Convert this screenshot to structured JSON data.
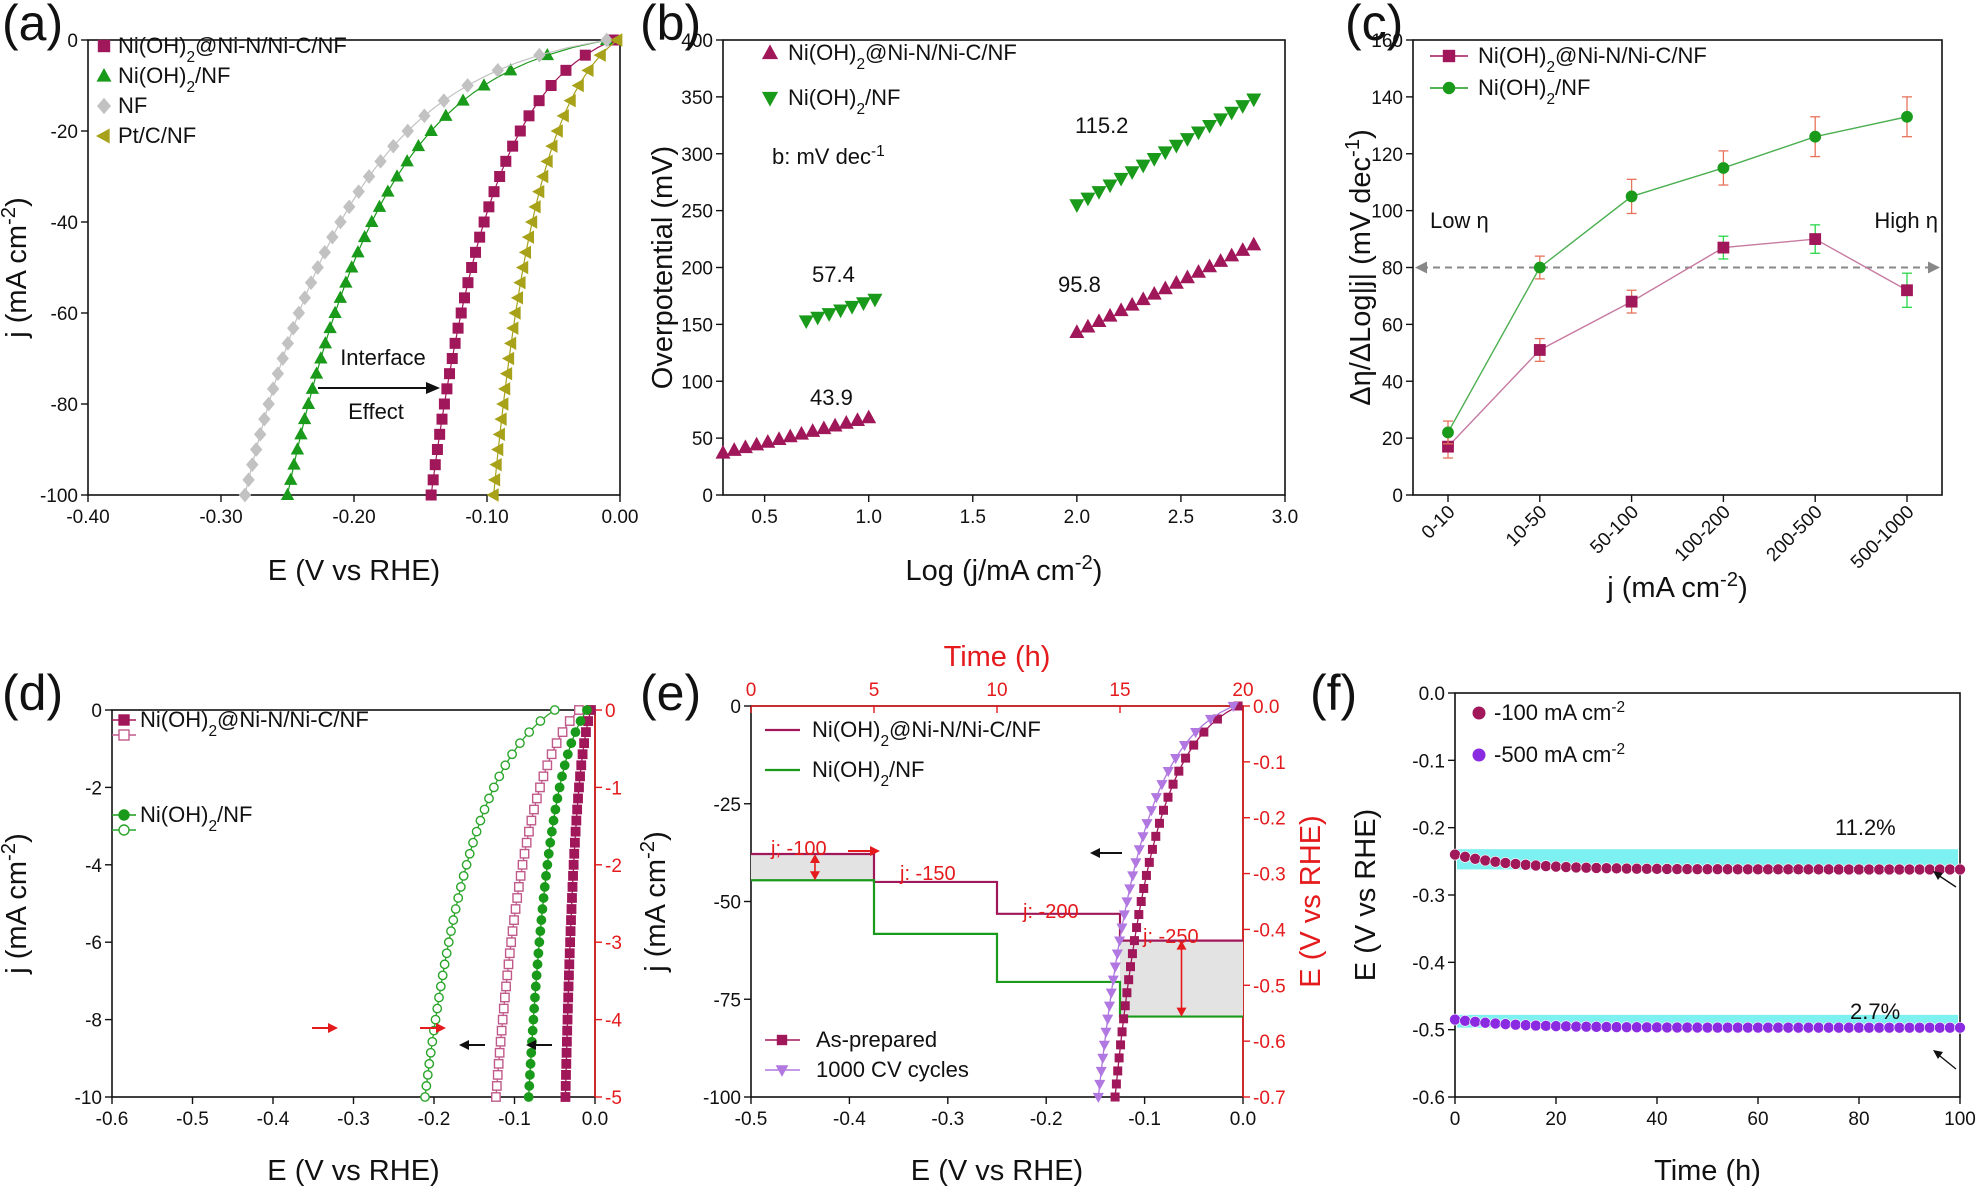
{
  "colors": {
    "maroon": "#a0175a",
    "green": "#1a9a1a",
    "gray": "#c2c2c2",
    "olive": "#a8a21a",
    "purple": "#b078e0",
    "orange": "#e6735c",
    "cyan": "#66eeee",
    "red": "#e41a1c",
    "violet": "#8a2be2"
  },
  "chart_data": [
    {
      "id": "a",
      "panel_label": "(a)",
      "type": "line",
      "xlabel": "E (V vs RHE)",
      "ylabel": "j (mA cm",
      "ylabel_sup": "-2",
      "ylabel_end": ")",
      "xlim": [
        -0.4,
        0.0
      ],
      "ylim": [
        -100,
        0
      ],
      "xticks": [
        "-0.40",
        "-0.30",
        "-0.20",
        "-0.10",
        "0.00"
      ],
      "yticks": [
        "-100",
        "-80",
        "-60",
        "-40",
        "-20",
        "0"
      ],
      "series": [
        {
          "name_main": "Ni(OH)",
          "name_sub": "2",
          "name_rest": "@Ni-N/Ni-C/NF",
          "color": "#a0175a",
          "marker": "square",
          "onset": -0.005,
          "e100": -0.142,
          "plateau": -6
        },
        {
          "name_main": "Ni(OH)",
          "name_sub": "2",
          "name_rest": "/NF",
          "color": "#1a9a1a",
          "marker": "triangle-up",
          "onset": -0.01,
          "e100": -0.25,
          "plateau": -4
        },
        {
          "name_main": "NF",
          "name_sub": "",
          "name_rest": "",
          "color": "#c2c2c2",
          "marker": "diamond",
          "onset": -0.01,
          "e100": -0.282,
          "plateau": -4
        },
        {
          "name_main": "Pt/C/NF",
          "name_sub": "",
          "name_rest": "",
          "color": "#a8a21a",
          "marker": "triangle-left",
          "onset": -0.002,
          "e100": -0.095,
          "plateau": -8
        }
      ],
      "annotation": {
        "line1": "Interface",
        "line2": "Effect"
      }
    },
    {
      "id": "b",
      "panel_label": "(b)",
      "type": "scatter",
      "xlabel": "Log (j/mA cm",
      "xlabel_sup": "-2",
      "xlabel_end": ")",
      "ylabel": "Overpotential (mV)",
      "xlim": [
        0.3,
        3.0
      ],
      "ylim": [
        0,
        400
      ],
      "xticks": [
        "0.5",
        "1.0",
        "1.5",
        "2.0",
        "2.5",
        "3.0"
      ],
      "yticks": [
        "0",
        "50",
        "100",
        "150",
        "200",
        "250",
        "300",
        "350",
        "400"
      ],
      "series": [
        {
          "name_main": "Ni(OH)",
          "name_sub": "2",
          "name_rest": "@Ni-N/Ni-C/NF",
          "color": "#a0175a",
          "marker": "triangle-up",
          "segments": [
            {
              "x": [
                0.3,
                1.0
              ],
              "y": [
                37,
                68
              ],
              "n": 14
            },
            {
              "x": [
                2.0,
                2.85
              ],
              "y": [
                143,
                220
              ],
              "n": 17
            }
          ]
        },
        {
          "name_main": "Ni(OH)",
          "name_sub": "2",
          "name_rest": "/NF",
          "color": "#1a9a1a",
          "marker": "triangle-down",
          "segments": [
            {
              "x": [
                0.7,
                1.03
              ],
              "y": [
                153,
                172
              ],
              "n": 7
            },
            {
              "x": [
                2.0,
                2.85
              ],
              "y": [
                255,
                348
              ],
              "n": 17
            }
          ]
        }
      ],
      "slope_labels": [
        "43.9",
        "57.4",
        "95.8",
        "115.2"
      ],
      "units_note": "b: mV dec",
      "units_sup": "-1"
    },
    {
      "id": "c",
      "panel_label": "(c)",
      "type": "line",
      "xlabel": "j (mA cm",
      "xlabel_sup": "-2",
      "xlabel_end": ")",
      "ylabel": "Δη/ΔLog|j| (mV dec",
      "ylabel_sup": "-1",
      "ylabel_end": ")",
      "categories": [
        "0-10",
        "10-50",
        "50-100",
        "100-200",
        "200-500",
        "500-1000"
      ],
      "ylim": [
        0,
        160
      ],
      "yticks": [
        "0",
        "20",
        "40",
        "60",
        "80",
        "100",
        "120",
        "140",
        "160"
      ],
      "series": [
        {
          "name_main": "Ni(OH)",
          "name_sub": "2",
          "name_rest": "@Ni-N/Ni-C/NF",
          "color": "#a0175a",
          "marker": "square",
          "values": [
            17,
            51,
            68,
            87,
            90,
            72
          ],
          "errors": [
            4,
            4,
            4,
            4,
            5,
            6
          ]
        },
        {
          "name_main": "Ni(OH)",
          "name_sub": "2",
          "name_rest": "/NF",
          "color": "#1a9a1a",
          "marker": "circle",
          "values": [
            22,
            80,
            105,
            115,
            126,
            133
          ],
          "errors": [
            4,
            4,
            6,
            6,
            7,
            7
          ]
        }
      ],
      "reference_line": 80,
      "low_label": "Low η",
      "high_label": "High η"
    },
    {
      "id": "d",
      "panel_label": "(d)",
      "type": "line",
      "xlabel": "E (V vs RHE)",
      "ylabel": "j (mA cm",
      "ylabel_sup": "-2",
      "ylabel_end": ")",
      "xlim": [
        -0.6,
        0.0
      ],
      "ylim": [
        -10,
        0
      ],
      "y2lim": [
        -5,
        0
      ],
      "xticks": [
        "-0.6",
        "-0.5",
        "-0.4",
        "-0.3",
        "-0.2",
        "-0.1",
        "0.0"
      ],
      "yticks": [
        "-10",
        "-8",
        "-6",
        "-4",
        "-2",
        "0"
      ],
      "y2ticks": [
        "-5",
        "-4",
        "-3",
        "-2",
        "-1",
        "0"
      ],
      "series": [
        {
          "name_main": "Ni(OH)",
          "name_sub": "2",
          "name_rest": "@Ni-N/Ni-C/NF",
          "color": "#a0175a",
          "marker": "square",
          "filled": true,
          "onset": -0.005,
          "e100": -0.065
        },
        {
          "name_main": "",
          "name_sub": "",
          "name_rest": "",
          "color": "#c05a8a",
          "marker": "square",
          "filled": false,
          "onset": -0.02,
          "e100": -0.215
        },
        {
          "name_main": "Ni(OH)",
          "name_sub": "2",
          "name_rest": "/NF",
          "color": "#1a9a1a",
          "marker": "circle",
          "filled": true,
          "onset": -0.01,
          "e100": -0.147
        },
        {
          "name_main": "",
          "name_sub": "",
          "name_rest": "",
          "color": "#2aa52a",
          "marker": "circle",
          "filled": false,
          "onset": -0.05,
          "e100": -0.355
        }
      ]
    },
    {
      "id": "e",
      "panel_label": "(e)",
      "type": "line",
      "xlabel": "E (V vs RHE)",
      "ylabel": "j (mA cm",
      "ylabel_sup": "-2",
      "ylabel_end": ")",
      "x2label": "Time (h)",
      "y2label": "E (V vs RHE)",
      "xlim": [
        -0.5,
        0.0
      ],
      "ylim": [
        -100,
        0
      ],
      "x2lim": [
        0,
        20
      ],
      "y2lim": [
        -0.7,
        0.0
      ],
      "xticks": [
        "-0.5",
        "-0.4",
        "-0.3",
        "-0.2",
        "-0.1",
        "0.0"
      ],
      "yticks": [
        "-100",
        "-75",
        "-50",
        "-25",
        "0"
      ],
      "x2ticks": [
        "0",
        "5",
        "10",
        "15",
        "20"
      ],
      "y2ticks": [
        "-0.7",
        "-0.6",
        "-0.5",
        "-0.4",
        "-0.3",
        "-0.2",
        "-0.1",
        "0.0"
      ],
      "steps": [
        {
          "name_main": "Ni(OH)",
          "name_sub": "2",
          "name_rest": "@Ni-N/Ni-C/NF",
          "color": "#a0175a",
          "values": [
            -0.265,
            -0.315,
            -0.372,
            -0.42
          ]
        },
        {
          "name_main": "Ni(OH)",
          "name_sub": "2",
          "name_rest": "/NF",
          "color": "#1a9a1a",
          "values": [
            -0.312,
            -0.408,
            -0.494,
            -0.556
          ]
        }
      ],
      "step_labels": [
        "j; -100",
        "j: -150",
        "j: -200",
        "j: -250"
      ],
      "lsv": [
        {
          "name": "As-prepared",
          "color": "#a0175a",
          "marker": "square",
          "onset": -0.005,
          "e100": -0.13
        },
        {
          "name": "1000 CV cycles",
          "color": "#b078e0",
          "marker": "triangle-down",
          "onset": -0.01,
          "e100": -0.147
        }
      ]
    },
    {
      "id": "f",
      "panel_label": "(f)",
      "type": "scatter",
      "xlabel": "Time (h)",
      "ylabel": "E (V vs RHE)",
      "xlim": [
        0,
        100
      ],
      "ylim": [
        -0.6,
        0.0
      ],
      "xticks": [
        "0",
        "20",
        "40",
        "60",
        "80",
        "100"
      ],
      "yticks": [
        "0.0",
        "-0.1",
        "-0.2",
        "-0.3",
        "-0.4",
        "-0.5",
        "-0.6"
      ],
      "series": [
        {
          "name_main": "-100 mA cm",
          "name_sup": "-2",
          "color": "#a0175a",
          "start": -0.24,
          "end": -0.262,
          "band": [
            -0.232,
            -0.262
          ]
        },
        {
          "name_main": "-500 mA cm",
          "name_sup": "-2",
          "color": "#8a2be2",
          "start": -0.485,
          "end": -0.497,
          "band": [
            -0.478,
            -0.497
          ]
        }
      ],
      "labels": [
        "11.2%",
        "2.7%"
      ]
    }
  ]
}
